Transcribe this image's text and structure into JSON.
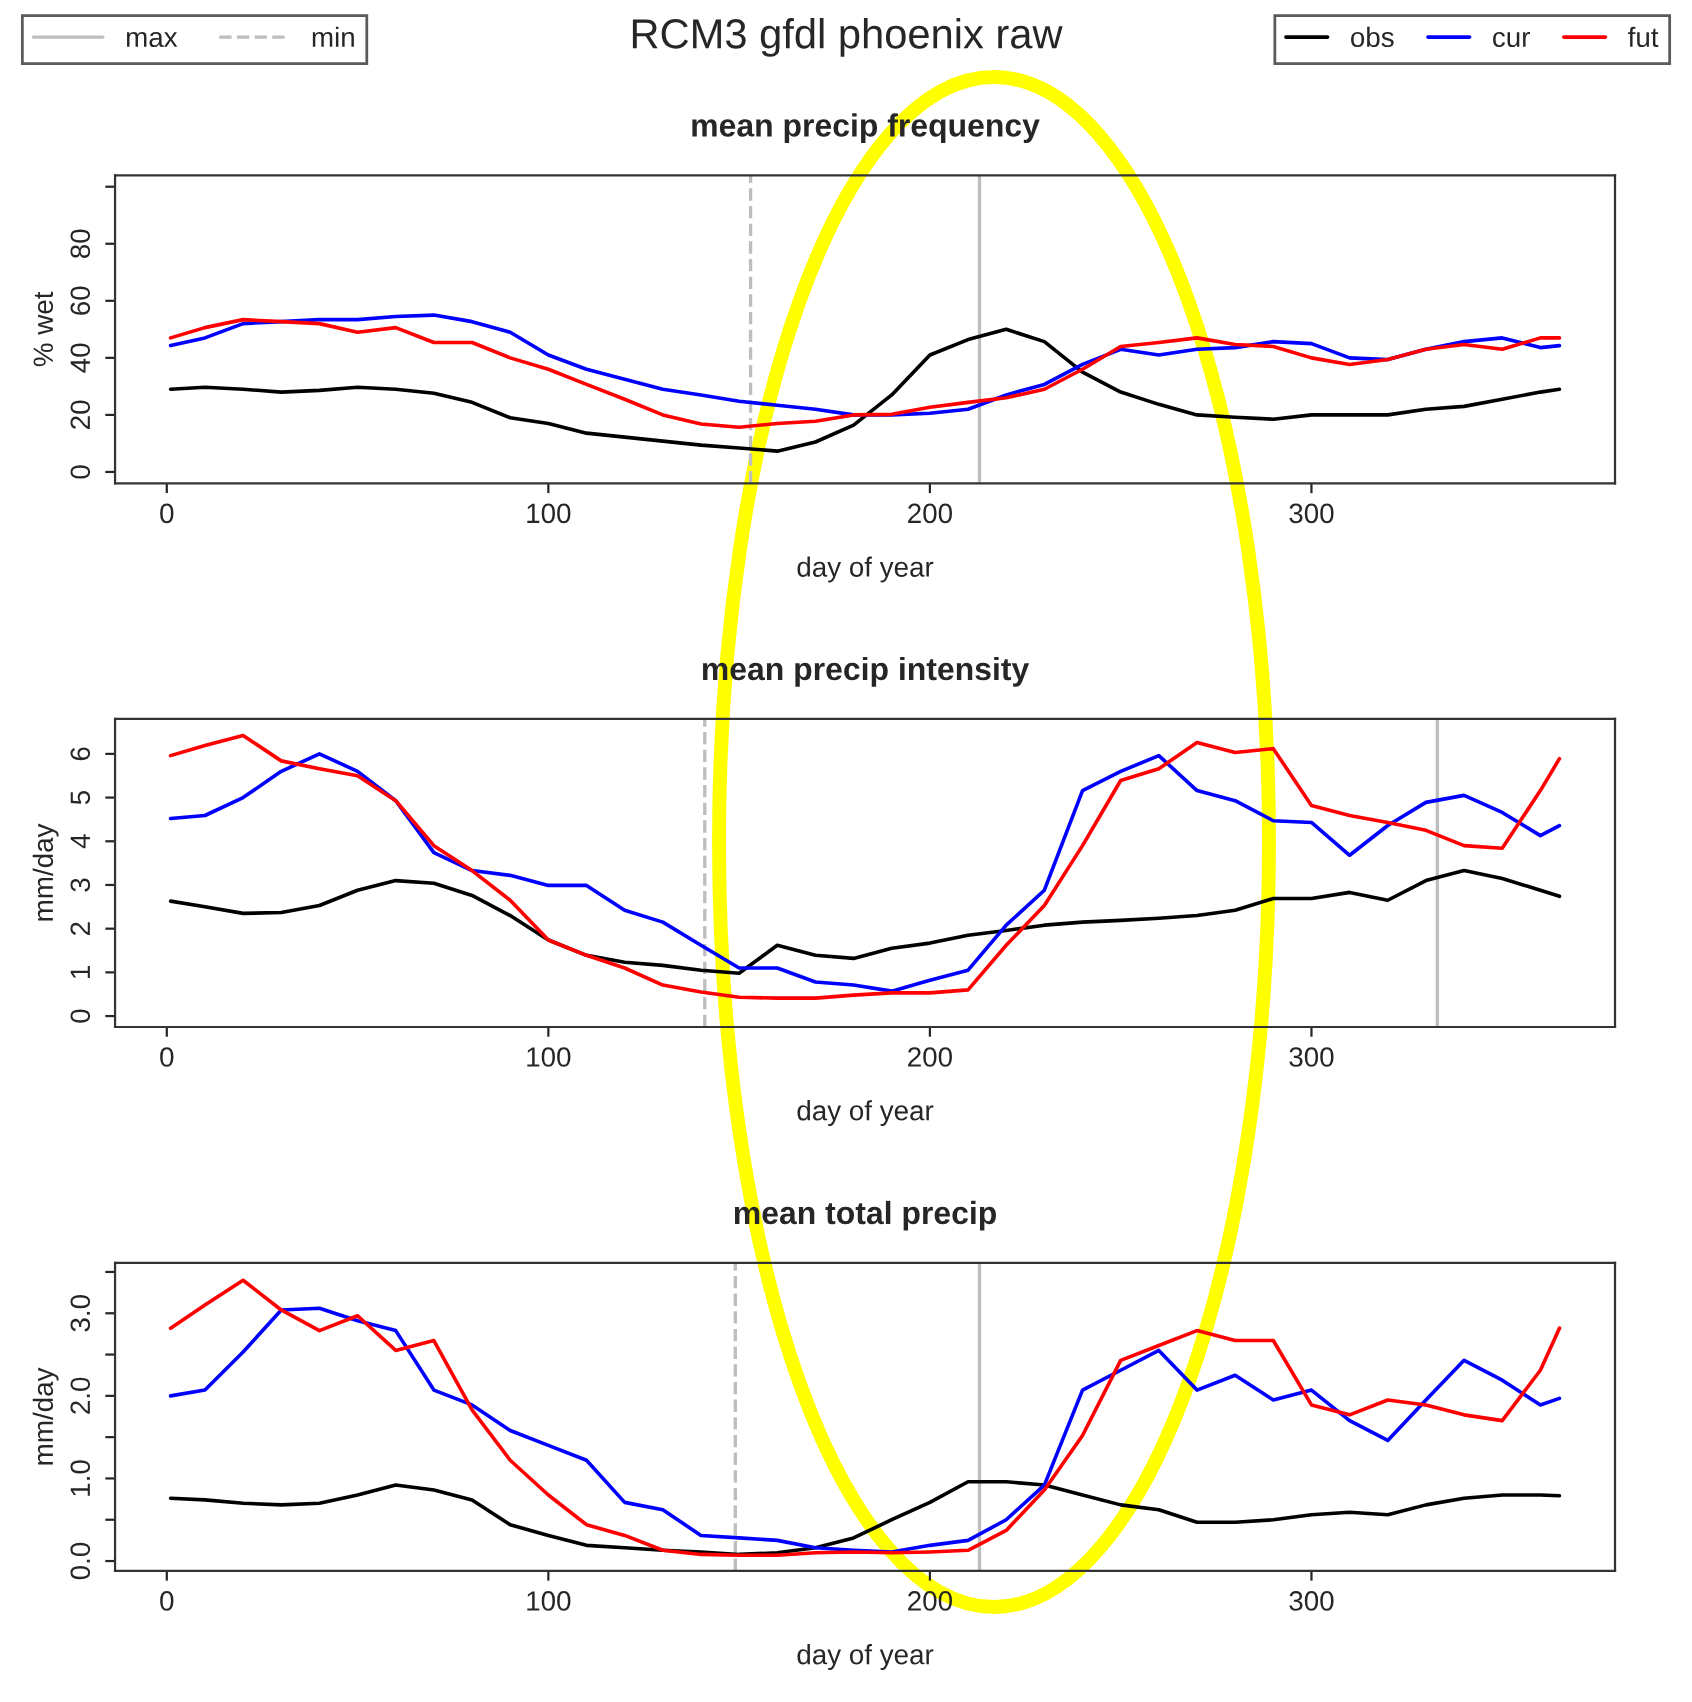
{
  "chart_data": [
    {
      "type": "line",
      "title": "mean precip frequency",
      "xlabel": "day of year",
      "ylabel": "% wet",
      "annotations": [
        "RCM3 gfdl phoenix raw"
      ],
      "legend": "top right",
      "grid": false,
      "x": [
        1,
        10,
        20,
        30,
        40,
        50,
        60,
        70,
        80,
        90,
        100,
        110,
        120,
        130,
        140,
        150,
        160,
        170,
        180,
        190,
        200,
        210,
        220,
        230,
        240,
        250,
        260,
        270,
        280,
        290,
        300,
        310,
        320,
        330,
        340,
        350,
        360,
        365
      ],
      "xlim": [
        -13.56,
        379.56
      ],
      "xticks": [
        0,
        100,
        200,
        300
      ],
      "ylim": [
        -4,
        104
      ],
      "yticks": [
        0,
        20,
        40,
        60,
        80,
        {
          "value": 100,
          "label": null
        }
      ],
      "series": [
        {
          "name": "obs",
          "color": "#000000",
          "values": [
            29,
            29.7,
            29,
            28,
            28.6,
            29.7,
            29,
            27.6,
            24.4,
            19,
            17,
            13.6,
            12.2,
            10.8,
            9.4,
            8.4,
            7.3,
            10.5,
            16.4,
            27,
            41,
            46.4,
            50,
            45.7,
            35,
            28,
            23.7,
            20,
            19.2,
            18.5,
            20,
            20,
            20,
            22,
            23,
            25.5,
            28,
            29
          ]
        },
        {
          "name": "cur",
          "color": "#0000ff",
          "values": [
            44.3,
            47,
            52,
            52.7,
            53.4,
            53.4,
            54.5,
            55,
            52.7,
            49,
            41,
            36,
            32.5,
            29,
            27,
            24.8,
            23.4,
            22,
            20,
            20,
            20.6,
            22,
            27,
            30.7,
            37.7,
            43,
            41,
            43,
            43.6,
            45.7,
            45,
            40,
            39.4,
            43,
            45.7,
            47,
            43.6,
            44.3
          ]
        },
        {
          "name": "fut",
          "color": "#ff0000",
          "values": [
            47,
            50.6,
            53.4,
            52.7,
            52,
            49,
            50.6,
            45.4,
            45.4,
            40,
            36,
            30.7,
            25.5,
            20,
            16.8,
            15.7,
            17,
            17.8,
            20,
            20.2,
            22.7,
            24.4,
            26,
            29,
            36,
            44,
            45.4,
            47,
            44.7,
            44,
            40,
            37.7,
            39.4,
            43,
            44.7,
            43,
            47,
            47
          ]
        }
      ],
      "ref_lines": [
        {
          "axis": "x",
          "value": 213,
          "label": "max",
          "color": "#bebebe",
          "line_style": "solid"
        },
        {
          "axis": "x",
          "value": 153,
          "label": "min",
          "color": "#bebebe",
          "line_style": "dashed"
        }
      ]
    },
    {
      "type": "line",
      "title": "mean precip intensity",
      "xlabel": "day of year",
      "ylabel": "mm/day",
      "grid": false,
      "x": [
        1,
        10,
        20,
        30,
        40,
        50,
        60,
        70,
        80,
        90,
        100,
        110,
        120,
        130,
        140,
        150,
        160,
        170,
        180,
        190,
        200,
        210,
        220,
        230,
        240,
        250,
        260,
        270,
        280,
        290,
        300,
        310,
        320,
        330,
        340,
        350,
        360,
        365
      ],
      "xlim": [
        -13.56,
        379.56
      ],
      "xticks": [
        0,
        100,
        200,
        300
      ],
      "ylim": [
        -0.25,
        6.8
      ],
      "yticks": [
        0,
        1,
        2,
        3,
        4,
        5,
        6
      ],
      "series": [
        {
          "color": "#000000",
          "values": [
            2.63,
            2.5,
            2.35,
            2.37,
            2.53,
            2.88,
            3.1,
            3.04,
            2.76,
            2.3,
            1.74,
            1.39,
            1.23,
            1.16,
            1.05,
            0.98,
            1.62,
            1.39,
            1.32,
            1.55,
            1.67,
            1.85,
            1.96,
            2.08,
            2.15,
            2.19,
            2.24,
            2.3,
            2.42,
            2.69,
            2.69,
            2.83,
            2.65,
            3.1,
            3.33,
            3.15,
            2.88,
            2.74
          ]
        },
        {
          "color": "#0000ff",
          "values": [
            4.52,
            4.59,
            5.0,
            5.6,
            6.0,
            5.6,
            4.93,
            3.74,
            3.33,
            3.22,
            2.99,
            2.99,
            2.42,
            2.15,
            1.62,
            1.1,
            1.1,
            0.78,
            0.71,
            0.57,
            0.82,
            1.05,
            2.08,
            2.88,
            5.16,
            5.6,
            5.96,
            5.16,
            4.93,
            4.47,
            4.43,
            3.68,
            4.36,
            4.89,
            5.05,
            4.66,
            4.13,
            4.36
          ]
        },
        {
          "color": "#ff0000",
          "values": [
            5.96,
            6.19,
            6.42,
            5.84,
            5.66,
            5.5,
            4.93,
            3.9,
            3.33,
            2.65,
            1.74,
            1.39,
            1.1,
            0.71,
            0.55,
            0.43,
            0.41,
            0.41,
            0.48,
            0.53,
            0.53,
            0.6,
            1.62,
            2.53,
            3.9,
            5.39,
            5.66,
            6.26,
            6.03,
            6.12,
            4.82,
            4.59,
            4.43,
            4.25,
            3.9,
            3.84,
            5.16,
            5.89
          ]
        }
      ],
      "ref_lines": [
        {
          "axis": "x",
          "value": 333,
          "color": "#bebebe",
          "line_style": "solid"
        },
        {
          "axis": "x",
          "value": 141,
          "color": "#bebebe",
          "line_style": "dashed"
        }
      ]
    },
    {
      "type": "line",
      "title": "mean total precip",
      "xlabel": "day of year",
      "ylabel": "mm/day",
      "grid": false,
      "x": [
        1,
        10,
        20,
        30,
        40,
        50,
        60,
        70,
        80,
        90,
        100,
        110,
        120,
        130,
        140,
        150,
        160,
        170,
        180,
        190,
        200,
        210,
        220,
        230,
        240,
        250,
        260,
        270,
        280,
        290,
        300,
        310,
        320,
        330,
        340,
        350,
        360,
        365
      ],
      "xlim": [
        -13.56,
        379.56
      ],
      "xticks": [
        0,
        100,
        200,
        300
      ],
      "ylim": [
        -0.12,
        3.61
      ],
      "yticks": [
        {
          "value": 0,
          "label": "0.0"
        },
        {
          "value": 0.5,
          "label": null
        },
        {
          "value": 1,
          "label": "1.0"
        },
        {
          "value": 1.5,
          "label": null
        },
        {
          "value": 2,
          "label": "2.0"
        },
        {
          "value": 2.5,
          "label": null
        },
        {
          "value": 3,
          "label": "3.0"
        },
        {
          "value": 3.5,
          "label": null
        }
      ],
      "series": [
        {
          "color": "#000000",
          "values": [
            0.76,
            0.74,
            0.7,
            0.68,
            0.7,
            0.8,
            0.92,
            0.86,
            0.74,
            0.44,
            0.31,
            0.19,
            0.16,
            0.13,
            0.11,
            0.08,
            0.1,
            0.16,
            0.28,
            0.5,
            0.71,
            0.96,
            0.96,
            0.92,
            0.8,
            0.68,
            0.62,
            0.47,
            0.47,
            0.5,
            0.56,
            0.59,
            0.56,
            0.68,
            0.76,
            0.8,
            0.8,
            0.79
          ]
        },
        {
          "color": "#0000ff",
          "values": [
            2.0,
            2.07,
            2.53,
            3.04,
            3.06,
            2.91,
            2.79,
            2.07,
            1.89,
            1.58,
            1.4,
            1.22,
            0.71,
            0.62,
            0.31,
            0.28,
            0.25,
            0.16,
            0.13,
            0.11,
            0.19,
            0.25,
            0.5,
            0.92,
            2.07,
            2.31,
            2.55,
            2.07,
            2.25,
            1.95,
            2.07,
            1.7,
            1.46,
            1.95,
            2.43,
            2.19,
            1.89,
            1.97
          ]
        },
        {
          "color": "#ff0000",
          "values": [
            2.82,
            3.1,
            3.4,
            3.04,
            2.79,
            2.97,
            2.55,
            2.67,
            1.83,
            1.22,
            0.8,
            0.44,
            0.31,
            0.13,
            0.08,
            0.07,
            0.07,
            0.1,
            0.11,
            0.1,
            0.11,
            0.13,
            0.37,
            0.86,
            1.52,
            2.43,
            2.61,
            2.79,
            2.67,
            2.67,
            1.89,
            1.77,
            1.95,
            1.89,
            1.77,
            1.7,
            2.31,
            2.82
          ]
        }
      ],
      "ref_lines": [
        {
          "axis": "x",
          "value": 213,
          "color": "#bebebe",
          "line_style": "solid"
        },
        {
          "axis": "x",
          "value": 149,
          "color": "#bebebe",
          "line_style": "dashed"
        }
      ]
    }
  ]
}
